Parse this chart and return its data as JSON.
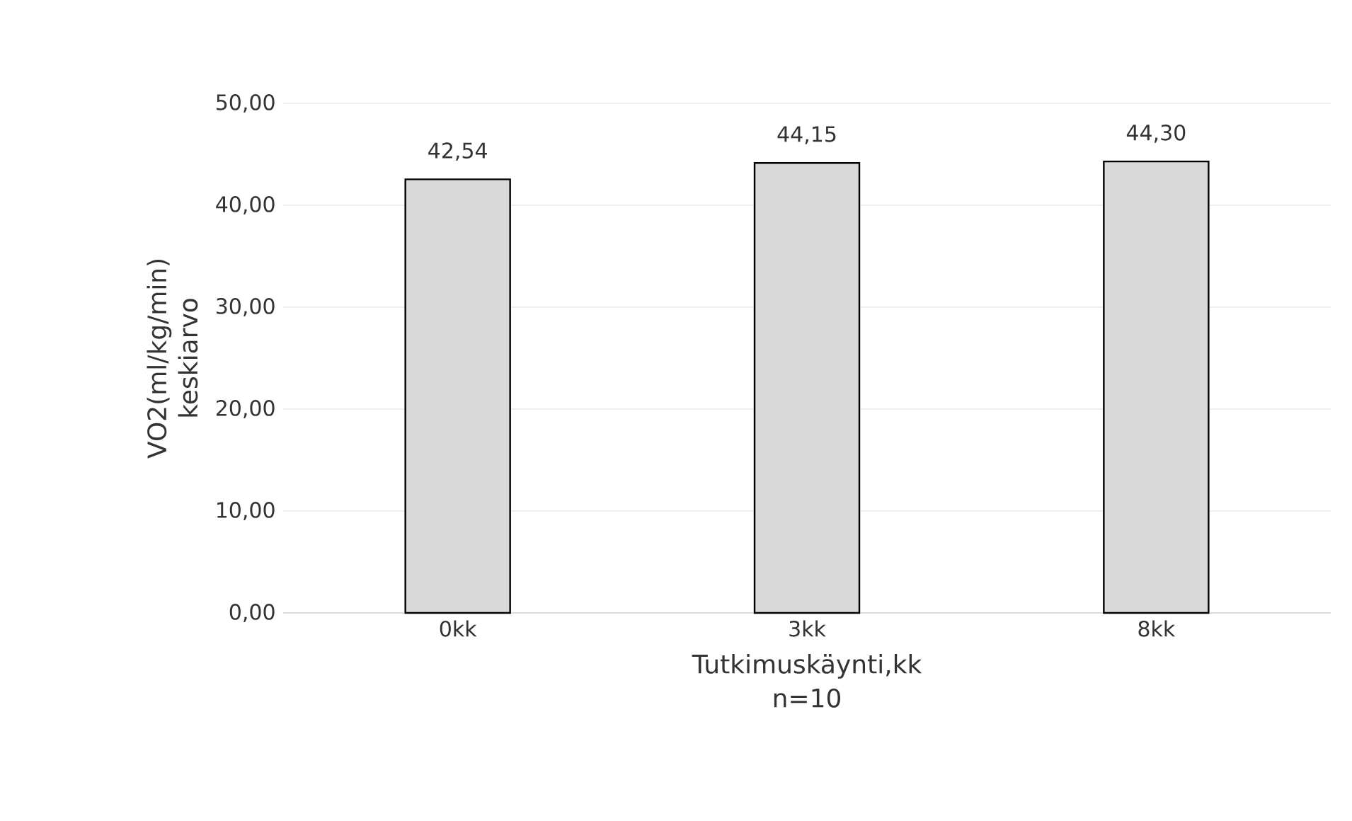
{
  "chart_data": {
    "type": "bar",
    "categories": [
      "0kk",
      "3kk",
      "8kk"
    ],
    "values": [
      42.54,
      44.15,
      44.3
    ],
    "value_labels": [
      "42,54",
      "44,15",
      "44,30"
    ],
    "color": "#d9d9d9",
    "xlabel": "Tutkimuskäynti,kk",
    "ylabel": "VO2(ml/kg/min) keskiarvo",
    "annotations": [
      "n=10"
    ],
    "ylim": [
      0,
      50
    ],
    "yticks": [
      {
        "value": 0,
        "label": "0,00"
      },
      {
        "value": 10,
        "label": "10,00"
      },
      {
        "value": 20,
        "label": "20,00"
      },
      {
        "value": 30,
        "label": "30,00"
      },
      {
        "value": 40,
        "label": "40,00"
      },
      {
        "value": 50,
        "label": "50,00"
      }
    ],
    "grid": "y"
  }
}
